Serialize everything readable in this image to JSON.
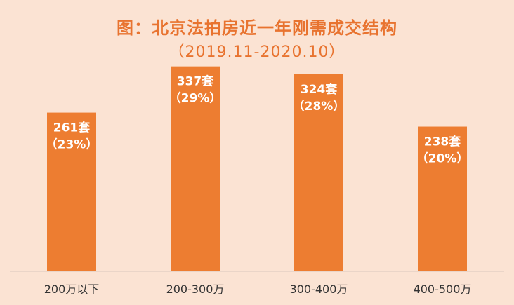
{
  "colors": {
    "bar": "#ed7d31",
    "title": "#e8732f",
    "background": "#fbe3d3"
  },
  "chart_data": {
    "type": "bar",
    "title": "图：北京法拍房近一年刚需成交结构",
    "subtitle": "（2019.11-2020.10）",
    "categories": [
      "200万以下",
      "200-300万",
      "300-400万",
      "400-500万"
    ],
    "values": [
      261,
      337,
      324,
      238
    ],
    "data_labels": [
      "261套",
      "337套",
      "324套",
      "238套"
    ],
    "percent_labels": [
      "（23%）",
      "（29%）",
      "（28%）",
      "（20%）"
    ],
    "ylim": [
      0,
      400
    ],
    "grid": false,
    "legend": "none"
  }
}
